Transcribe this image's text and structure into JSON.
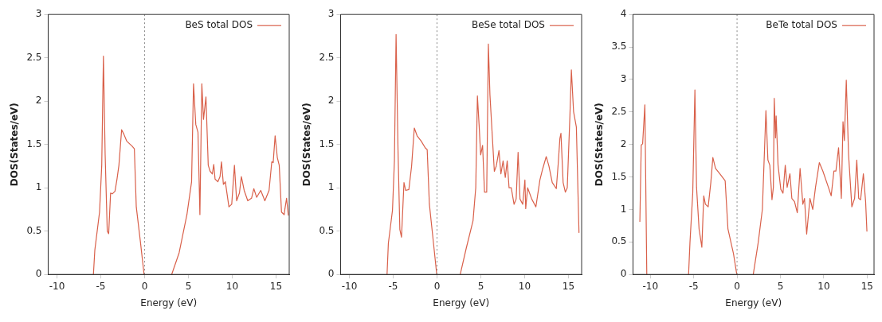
{
  "chart_data": [
    {
      "type": "line",
      "xlabel": "Energy (eV)",
      "ylabel": "DOS(States/eV)",
      "xlim": [
        -11,
        16.5
      ],
      "ylim": [
        0,
        3
      ],
      "xticks": [
        -10,
        -5,
        0,
        5,
        10,
        15
      ],
      "yticks": [
        0,
        0.5,
        1,
        1.5,
        2,
        2.5,
        3
      ],
      "legend": "top right",
      "grid": false,
      "marker": "none",
      "line_style": "solid",
      "ref_lines": [
        {
          "axis": "x",
          "value": 0,
          "color": "#888888",
          "line_style": "dotted"
        }
      ],
      "series": [
        {
          "name": "BeS total DOS",
          "color": "#d9604a",
          "x": [
            -5.84,
            -5.68,
            -5.14,
            -4.89,
            -4.7,
            -4.5,
            -4.26,
            -4.1,
            -3.88,
            -3.69,
            -3.38,
            -3.15,
            -2.93,
            -2.62,
            -2.37,
            -2.05,
            -1.42,
            -1.17,
            -0.95,
            -0.47,
            -0.06,
            1.5,
            3.09,
            3.94,
            4.83,
            5.36,
            5.58,
            5.84,
            6.09,
            6.31,
            6.53,
            6.72,
            7.0,
            7.26,
            7.48,
            7.73,
            7.89,
            8.04,
            8.36,
            8.61,
            8.77,
            8.99,
            9.21,
            9.62,
            9.94,
            10.25,
            10.5,
            10.82,
            11.04,
            11.36,
            11.77,
            12.2,
            12.46,
            12.78,
            13.25,
            13.72,
            14.2,
            14.51,
            14.67,
            14.89,
            15.14,
            15.36,
            15.62,
            15.93,
            16.0,
            16.2,
            16.4
          ],
          "values": [
            0,
            0.28,
            0.72,
            1.26,
            2.52,
            1.38,
            0.5,
            0.47,
            0.94,
            0.93,
            0.96,
            1.1,
            1.26,
            1.67,
            1.62,
            1.54,
            1.48,
            1.45,
            0.78,
            0.37,
            0,
            null,
            0,
            0.25,
            0.69,
            1.07,
            2.2,
            1.73,
            1.64,
            0.69,
            2.2,
            1.79,
            2.05,
            1.26,
            1.19,
            1.16,
            1.27,
            1.1,
            1.07,
            1.13,
            1.3,
            1.04,
            1.07,
            0.78,
            0.81,
            1.26,
            0.85,
            0.94,
            1.13,
            0.97,
            0.85,
            0.88,
            0.99,
            0.89,
            0.97,
            0.85,
            0.97,
            1.3,
            1.29,
            1.6,
            1.35,
            1.26,
            0.72,
            0.69,
            0.75,
            0.88,
            0.68
          ]
        }
      ]
    },
    {
      "type": "line",
      "xlabel": "Energy (eV)",
      "ylabel": "DOS(States/eV)",
      "xlim": [
        -11,
        16.5
      ],
      "ylim": [
        0,
        3
      ],
      "xticks": [
        -10,
        -5,
        0,
        5,
        10,
        15
      ],
      "yticks": [
        0,
        0.5,
        1,
        1.5,
        2,
        2.5,
        3
      ],
      "legend": "top right",
      "grid": false,
      "marker": "none",
      "line_style": "solid",
      "ref_lines": [
        {
          "axis": "x",
          "value": 0,
          "color": "#888888",
          "line_style": "dotted"
        }
      ],
      "series": [
        {
          "name": "BeSe total DOS",
          "color": "#d9604a",
          "x": [
            -5.7,
            -5.55,
            -5.08,
            -4.86,
            -4.67,
            -4.45,
            -4.24,
            -4.05,
            -3.77,
            -3.58,
            -3.21,
            -2.9,
            -2.59,
            -2.27,
            -1.81,
            -1.34,
            -1.12,
            -0.87,
            -0.4,
            -0.03,
            1.3,
            2.65,
            3.33,
            4.11,
            4.42,
            4.61,
            4.8,
            4.98,
            5.2,
            5.42,
            5.67,
            5.86,
            6.04,
            6.29,
            6.54,
            6.76,
            7.07,
            7.29,
            7.54,
            7.79,
            8.01,
            8.22,
            8.47,
            8.79,
            9.03,
            9.25,
            9.47,
            9.78,
            10.03,
            10.12,
            10.34,
            10.81,
            11.28,
            11.74,
            12.06,
            12.46,
            12.77,
            13.15,
            13.61,
            13.83,
            14.02,
            14.14,
            14.39,
            14.64,
            14.86,
            15.17,
            15.33,
            15.58,
            15.9,
            16.2
          ],
          "values": [
            0,
            0.36,
            0.74,
            1.31,
            2.77,
            1.44,
            0.52,
            0.43,
            1.06,
            0.97,
            0.98,
            1.25,
            1.69,
            1.6,
            1.54,
            1.46,
            1.44,
            0.81,
            0.36,
            0,
            null,
            0,
            0.3,
            0.62,
            1.0,
            2.06,
            1.73,
            1.38,
            1.49,
            0.95,
            0.95,
            2.66,
            2.07,
            1.63,
            1.19,
            1.25,
            1.43,
            1.16,
            1.31,
            1.12,
            1.31,
            1.0,
            1.0,
            0.81,
            0.87,
            1.41,
            0.87,
            0.81,
            1.09,
            0.76,
            1.0,
            0.87,
            0.78,
            1.09,
            1.22,
            1.36,
            1.25,
            1.06,
            0.99,
            1.28,
            1.57,
            1.63,
            1.06,
            0.95,
            1.0,
            1.85,
            2.36,
            1.88,
            1.7,
            0.48
          ]
        }
      ]
    },
    {
      "type": "line",
      "xlabel": "Energy (eV)",
      "ylabel": "DOS(States/eV)",
      "xlim": [
        -12,
        15.8
      ],
      "ylim": [
        0,
        4
      ],
      "xticks": [
        -10,
        -5,
        0,
        5,
        10,
        15
      ],
      "yticks": [
        0,
        0.5,
        1,
        1.5,
        2,
        2.5,
        3,
        3.5,
        4
      ],
      "legend": "top right",
      "grid": false,
      "marker": "none",
      "line_style": "solid",
      "ref_lines": [
        {
          "axis": "x",
          "value": 0,
          "color": "#888888",
          "line_style": "dotted"
        }
      ],
      "series": [
        {
          "name": "BeTe total DOS",
          "color": "#d9604a",
          "x": [
            -11.21,
            -11.05,
            -10.89,
            -10.63,
            -10.41,
            -8,
            -5.59,
            -5.43,
            -5.11,
            -4.86,
            -4.67,
            -4.38,
            -4.06,
            -3.84,
            -3.65,
            -3.33,
            -3.02,
            -2.79,
            -2.48,
            -2.0,
            -1.37,
            -1.05,
            -0.41,
            -0.03,
            1.0,
            1.87,
            2.44,
            2.92,
            3.33,
            3.56,
            3.78,
            4.03,
            4.19,
            4.29,
            4.44,
            4.51,
            4.73,
            5.05,
            5.3,
            5.56,
            5.78,
            6.1,
            6.32,
            6.63,
            6.95,
            7.27,
            7.59,
            7.78,
            8.03,
            8.41,
            8.73,
            9.05,
            9.49,
            9.9,
            10.54,
            10.86,
            11.17,
            11.4,
            11.71,
            12.03,
            12.22,
            12.38,
            12.6,
            12.86,
            13.24,
            13.56,
            13.81,
            14.03,
            14.25,
            14.57,
            14.83,
            14.98
          ],
          "values": [
            0.81,
            1.99,
            2.01,
            2.61,
            0,
            null,
            0,
            0.49,
            1.25,
            2.84,
            1.34,
            0.7,
            0.42,
            1.21,
            1.08,
            1.04,
            1.42,
            1.8,
            1.63,
            1.55,
            1.44,
            0.7,
            0.32,
            0,
            null,
            0,
            0.49,
            1.0,
            2.52,
            1.76,
            1.68,
            1.15,
            1.34,
            2.71,
            2.1,
            2.44,
            1.68,
            1.31,
            1.25,
            1.68,
            1.34,
            1.55,
            1.17,
            1.12,
            0.95,
            1.63,
            1.08,
            1.17,
            0.62,
            1.17,
            1.0,
            1.34,
            1.72,
            1.59,
            1.34,
            1.21,
            1.59,
            1.59,
            1.95,
            1.17,
            2.35,
            2.06,
            2.99,
            1.85,
            1.04,
            1.17,
            1.76,
            1.17,
            1.15,
            1.55,
            1.12,
            0.66
          ]
        }
      ]
    }
  ]
}
